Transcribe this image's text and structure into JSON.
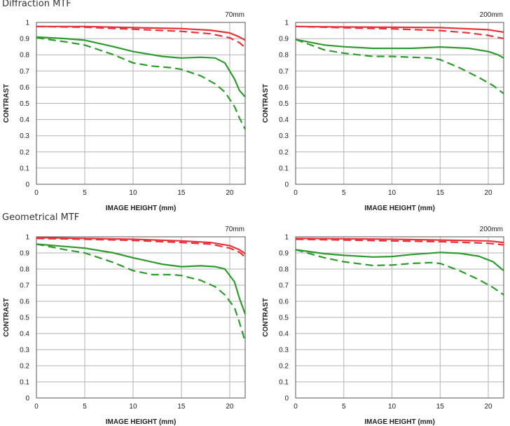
{
  "sections": [
    {
      "title": "Diffraction MTF"
    },
    {
      "title": "Geometrical MTF"
    }
  ],
  "colors": {
    "red": "#e8323a",
    "green": "#2f9a2f",
    "grid": "#b3b3b3",
    "frame": "#555555"
  },
  "chart_data": [
    {
      "type": "line",
      "section": "Diffraction MTF",
      "focal": "70mm",
      "xlabel": "IMAGE HEIGHT (mm)",
      "ylabel": "CONTRAST",
      "xlim": [
        0,
        21.6
      ],
      "ylim": [
        0,
        1
      ],
      "xticks": [
        0,
        5,
        10,
        15,
        20
      ],
      "yticks": [
        0,
        0.1,
        0.2,
        0.3,
        0.4,
        0.5,
        0.6,
        0.7,
        0.8,
        0.9,
        1
      ],
      "grid": true,
      "series": [
        {
          "color": "red",
          "dash": false,
          "points": [
            [
              0,
              0.975
            ],
            [
              5,
              0.975
            ],
            [
              10,
              0.968
            ],
            [
              15,
              0.962
            ],
            [
              18,
              0.952
            ],
            [
              20,
              0.935
            ],
            [
              21,
              0.91
            ],
            [
              21.6,
              0.89
            ]
          ]
        },
        {
          "color": "red",
          "dash": true,
          "points": [
            [
              0,
              0.975
            ],
            [
              5,
              0.97
            ],
            [
              10,
              0.958
            ],
            [
              15,
              0.945
            ],
            [
              18,
              0.93
            ],
            [
              20,
              0.905
            ],
            [
              21,
              0.875
            ],
            [
              21.6,
              0.845
            ]
          ]
        },
        {
          "color": "green",
          "dash": false,
          "points": [
            [
              0,
              0.91
            ],
            [
              3,
              0.9
            ],
            [
              5,
              0.89
            ],
            [
              8,
              0.85
            ],
            [
              10,
              0.82
            ],
            [
              13,
              0.79
            ],
            [
              15,
              0.78
            ],
            [
              17,
              0.785
            ],
            [
              18.5,
              0.78
            ],
            [
              19.5,
              0.75
            ],
            [
              20.5,
              0.65
            ],
            [
              21,
              0.58
            ],
            [
              21.6,
              0.54
            ]
          ]
        },
        {
          "color": "green",
          "dash": true,
          "points": [
            [
              0,
              0.905
            ],
            [
              3,
              0.88
            ],
            [
              5,
              0.86
            ],
            [
              8,
              0.8
            ],
            [
              10,
              0.75
            ],
            [
              12,
              0.73
            ],
            [
              14,
              0.72
            ],
            [
              15,
              0.71
            ],
            [
              17,
              0.67
            ],
            [
              18.5,
              0.62
            ],
            [
              19.5,
              0.57
            ],
            [
              20.5,
              0.48
            ],
            [
              21,
              0.41
            ],
            [
              21.6,
              0.34
            ]
          ]
        }
      ]
    },
    {
      "type": "line",
      "section": "Diffraction MTF",
      "focal": "200mm",
      "xlabel": "IMAGE HEIGHT (mm)",
      "ylabel": "CONTRAST",
      "xlim": [
        0,
        21.6
      ],
      "ylim": [
        0,
        1
      ],
      "xticks": [
        0,
        5,
        10,
        15,
        20
      ],
      "yticks": [
        0,
        0.1,
        0.2,
        0.3,
        0.4,
        0.5,
        0.6,
        0.7,
        0.8,
        0.9,
        1
      ],
      "grid": true,
      "series": [
        {
          "color": "red",
          "dash": false,
          "points": [
            [
              0,
              0.975
            ],
            [
              5,
              0.972
            ],
            [
              10,
              0.97
            ],
            [
              15,
              0.968
            ],
            [
              20,
              0.955
            ],
            [
              21.6,
              0.94
            ]
          ]
        },
        {
          "color": "red",
          "dash": true,
          "points": [
            [
              0,
              0.975
            ],
            [
              5,
              0.967
            ],
            [
              10,
              0.96
            ],
            [
              15,
              0.95
            ],
            [
              18,
              0.935
            ],
            [
              20,
              0.92
            ],
            [
              21.6,
              0.9
            ]
          ]
        },
        {
          "color": "green",
          "dash": false,
          "points": [
            [
              0,
              0.895
            ],
            [
              3,
              0.86
            ],
            [
              5,
              0.85
            ],
            [
              8,
              0.84
            ],
            [
              10,
              0.84
            ],
            [
              12,
              0.84
            ],
            [
              15,
              0.848
            ],
            [
              18,
              0.84
            ],
            [
              20,
              0.82
            ],
            [
              21,
              0.8
            ],
            [
              21.6,
              0.78
            ]
          ]
        },
        {
          "color": "green",
          "dash": true,
          "points": [
            [
              0,
              0.895
            ],
            [
              3,
              0.83
            ],
            [
              5,
              0.81
            ],
            [
              8,
              0.79
            ],
            [
              10,
              0.79
            ],
            [
              12,
              0.785
            ],
            [
              14,
              0.78
            ],
            [
              15,
              0.77
            ],
            [
              17,
              0.72
            ],
            [
              19,
              0.66
            ],
            [
              20.5,
              0.61
            ],
            [
              21.6,
              0.56
            ]
          ]
        }
      ]
    },
    {
      "type": "line",
      "section": "Geometrical MTF",
      "focal": "70mm",
      "xlabel": "IMAGE HEIGHT (mm)",
      "ylabel": "CONTRAST",
      "xlim": [
        0,
        21.6
      ],
      "ylim": [
        0,
        1
      ],
      "xticks": [
        0,
        5,
        10,
        15,
        20
      ],
      "yticks": [
        0,
        0.1,
        0.2,
        0.3,
        0.4,
        0.5,
        0.6,
        0.7,
        0.8,
        0.9,
        1
      ],
      "grid": true,
      "series": [
        {
          "color": "red",
          "dash": false,
          "points": [
            [
              0,
              0.995
            ],
            [
              5,
              0.99
            ],
            [
              10,
              0.985
            ],
            [
              15,
              0.975
            ],
            [
              18,
              0.965
            ],
            [
              20,
              0.945
            ],
            [
              21,
              0.92
            ],
            [
              21.6,
              0.895
            ]
          ]
        },
        {
          "color": "red",
          "dash": true,
          "points": [
            [
              0,
              0.99
            ],
            [
              5,
              0.985
            ],
            [
              10,
              0.978
            ],
            [
              15,
              0.965
            ],
            [
              18,
              0.955
            ],
            [
              20,
              0.93
            ],
            [
              21,
              0.905
            ],
            [
              21.6,
              0.875
            ]
          ]
        },
        {
          "color": "green",
          "dash": false,
          "points": [
            [
              0,
              0.955
            ],
            [
              3,
              0.94
            ],
            [
              5,
              0.93
            ],
            [
              8,
              0.9
            ],
            [
              10,
              0.87
            ],
            [
              13,
              0.83
            ],
            [
              15,
              0.815
            ],
            [
              17,
              0.82
            ],
            [
              18.5,
              0.815
            ],
            [
              19.5,
              0.8
            ],
            [
              20.5,
              0.72
            ],
            [
              21,
              0.62
            ],
            [
              21.6,
              0.52
            ]
          ]
        },
        {
          "color": "green",
          "dash": true,
          "points": [
            [
              0,
              0.955
            ],
            [
              3,
              0.92
            ],
            [
              5,
              0.9
            ],
            [
              8,
              0.84
            ],
            [
              10,
              0.79
            ],
            [
              12,
              0.765
            ],
            [
              14,
              0.765
            ],
            [
              15,
              0.76
            ],
            [
              17,
              0.73
            ],
            [
              18.5,
              0.69
            ],
            [
              19.5,
              0.64
            ],
            [
              20.5,
              0.56
            ],
            [
              21,
              0.47
            ],
            [
              21.6,
              0.35
            ]
          ]
        }
      ]
    },
    {
      "type": "line",
      "section": "Geometrical MTF",
      "focal": "200mm",
      "xlabel": "IMAGE HEIGHT (mm)",
      "ylabel": "CONTRAST",
      "xlim": [
        0,
        21.6
      ],
      "ylim": [
        0,
        1
      ],
      "xticks": [
        0,
        5,
        10,
        15,
        20
      ],
      "yticks": [
        0,
        0.1,
        0.2,
        0.3,
        0.4,
        0.5,
        0.6,
        0.7,
        0.8,
        0.9,
        1
      ],
      "grid": true,
      "series": [
        {
          "color": "red",
          "dash": false,
          "points": [
            [
              0,
              0.99
            ],
            [
              5,
              0.988
            ],
            [
              10,
              0.985
            ],
            [
              15,
              0.98
            ],
            [
              20,
              0.975
            ],
            [
              21.6,
              0.965
            ]
          ]
        },
        {
          "color": "red",
          "dash": true,
          "points": [
            [
              0,
              0.985
            ],
            [
              5,
              0.98
            ],
            [
              10,
              0.975
            ],
            [
              15,
              0.97
            ],
            [
              20,
              0.96
            ],
            [
              21.6,
              0.95
            ]
          ]
        },
        {
          "color": "green",
          "dash": false,
          "points": [
            [
              0,
              0.92
            ],
            [
              3,
              0.895
            ],
            [
              5,
              0.885
            ],
            [
              8,
              0.875
            ],
            [
              10,
              0.878
            ],
            [
              12,
              0.89
            ],
            [
              15,
              0.903
            ],
            [
              17,
              0.898
            ],
            [
              19,
              0.88
            ],
            [
              20.5,
              0.845
            ],
            [
              21.6,
              0.79
            ]
          ]
        },
        {
          "color": "green",
          "dash": true,
          "points": [
            [
              0,
              0.92
            ],
            [
              3,
              0.87
            ],
            [
              5,
              0.845
            ],
            [
              8,
              0.822
            ],
            [
              10,
              0.825
            ],
            [
              12,
              0.835
            ],
            [
              14,
              0.84
            ],
            [
              15,
              0.835
            ],
            [
              17,
              0.79
            ],
            [
              19,
              0.735
            ],
            [
              20.5,
              0.685
            ],
            [
              21.6,
              0.64
            ]
          ]
        }
      ]
    }
  ]
}
